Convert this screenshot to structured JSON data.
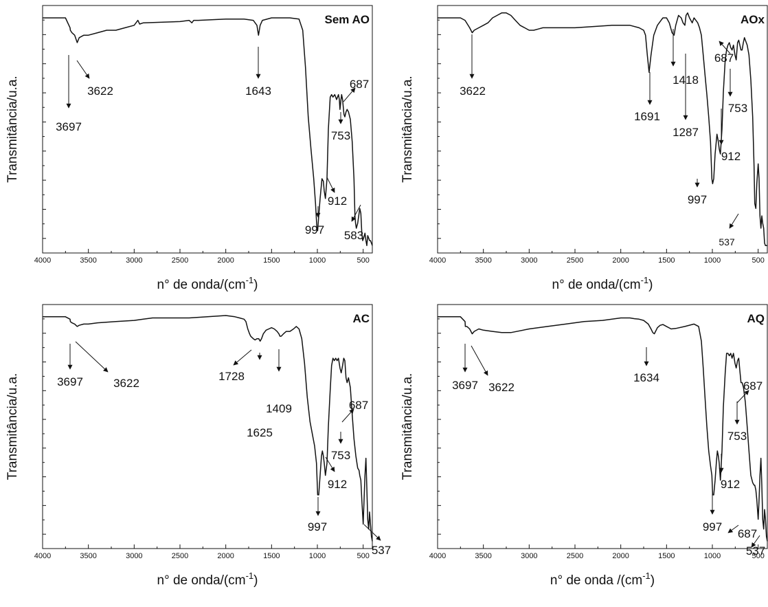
{
  "chart_data": [
    {
      "type": "line",
      "title": "Sem AO",
      "xlabel_main": "n° de onda/(cm",
      "xlabel_sup": "-1",
      "xlabel_end": ")",
      "ylabel": "Transmitância/u.a.",
      "xlim": [
        4000,
        400
      ],
      "ylim": [
        0,
        100
      ],
      "x_ticks": [
        4000,
        3500,
        3000,
        2500,
        2000,
        1500,
        1000,
        500
      ],
      "x_tick_labels": [
        "4000",
        "3500",
        "3000",
        "2500",
        "2000",
        "1500",
        "1000",
        "500"
      ],
      "series": [
        {
          "x": [
            4000,
            3750,
            3700,
            3697,
            3680,
            3650,
            3622,
            3600,
            3550,
            3500,
            3400,
            3300,
            3200,
            3100,
            3000,
            2960,
            2940,
            2900,
            2500,
            2400,
            2370,
            2350,
            2300,
            2000,
            1800,
            1700,
            1660,
            1643,
            1625,
            1600,
            1500,
            1300,
            1200,
            1160,
            1130,
            1100,
            1070,
            1040,
            1020,
            1005,
            997,
            985,
            970,
            950,
            935,
            925,
            912,
            895,
            880,
            860,
            845,
            830,
            810,
            790,
            770,
            760,
            753,
            745,
            735,
            725,
            710,
            700,
            687,
            675,
            660,
            640,
            620,
            600,
            590,
            583,
            575,
            560,
            545,
            537,
            525,
            515,
            505,
            495,
            480,
            470,
            460,
            450,
            440,
            430,
            420,
            410,
            400
          ],
          "y": [
            95,
            95,
            91,
            90,
            89,
            88,
            85,
            87,
            88,
            88,
            89,
            90,
            90,
            91,
            92,
            94,
            92.5,
            93,
            93.5,
            94,
            93,
            94,
            94,
            94.5,
            94.5,
            94,
            92,
            88,
            92,
            94,
            95,
            95,
            94.5,
            90,
            75,
            55,
            42,
            30,
            20,
            10,
            9,
            15,
            22,
            30,
            29,
            25,
            22,
            30,
            50,
            63,
            64,
            63,
            64,
            62,
            64,
            62,
            58,
            61,
            64,
            62,
            56,
            55,
            57,
            58,
            57,
            54,
            45,
            30,
            15,
            12,
            10,
            12,
            16,
            18,
            16,
            8,
            5,
            6,
            8,
            5,
            3,
            7,
            6,
            5,
            5,
            4,
            3
          ]
        }
      ],
      "annotations": [
        {
          "label": "3697",
          "wn": 3697
        },
        {
          "label": "3622",
          "wn": 3622
        },
        {
          "label": "1643",
          "wn": 1643
        },
        {
          "label": "687",
          "wn": 687
        },
        {
          "label": "753",
          "wn": 753
        },
        {
          "label": "912",
          "wn": 912
        },
        {
          "label": "997",
          "wn": 997
        },
        {
          "label": "583",
          "wn": 583
        }
      ]
    },
    {
      "type": "line",
      "title": "AOx",
      "xlabel_main": "n° de onda/(cm",
      "xlabel_sup": "-1",
      "xlabel_end": ")",
      "ylabel": "Transmitância/u.a.",
      "xlim": [
        4000,
        400
      ],
      "ylim": [
        0,
        100
      ],
      "x_ticks": [
        4000,
        3500,
        3000,
        2500,
        2000,
        1500,
        1000,
        500
      ],
      "x_tick_labels": [
        "4000",
        "3500",
        "3000",
        "2500",
        "2000",
        "1500",
        "1000",
        "500"
      ],
      "series": [
        {
          "x": [
            4000,
            3750,
            3700,
            3650,
            3622,
            3600,
            3550,
            3500,
            3450,
            3400,
            3350,
            3300,
            3250,
            3200,
            3150,
            3100,
            3050,
            3000,
            2950,
            2900,
            2850,
            2800,
            2700,
            2500,
            2300,
            2100,
            2000,
            1900,
            1800,
            1750,
            1730,
            1710,
            1691,
            1670,
            1640,
            1600,
            1560,
            1540,
            1500,
            1470,
            1440,
            1418,
            1400,
            1370,
            1340,
            1320,
            1300,
            1287,
            1270,
            1250,
            1220,
            1200,
            1180,
            1160,
            1140,
            1120,
            1100,
            1080,
            1060,
            1040,
            1020,
            1005,
            997,
            985,
            970,
            950,
            935,
            925,
            912,
            895,
            880,
            860,
            845,
            830,
            815,
            800,
            785,
            770,
            753,
            740,
            725,
            712,
            700,
            687,
            675,
            662,
            650,
            640,
            620,
            600,
            580,
            560,
            545,
            537,
            525,
            515,
            500,
            490,
            480,
            470,
            460,
            450,
            440,
            430,
            420,
            410,
            400
          ],
          "y": [
            95,
            95,
            94,
            91,
            89,
            90,
            91,
            92,
            93,
            95,
            96,
            97,
            97,
            96,
            94,
            92,
            91,
            90,
            90,
            90.5,
            91,
            91,
            91,
            91,
            91.5,
            92,
            92,
            92,
            91,
            90,
            88,
            80,
            73,
            80,
            88,
            92,
            94,
            95,
            95,
            93,
            89,
            88,
            92,
            96,
            95,
            93,
            92,
            96,
            97,
            95,
            93,
            95,
            94,
            93,
            91,
            88,
            80,
            72,
            64,
            55,
            45,
            30,
            28,
            30,
            40,
            48,
            45,
            42,
            40,
            50,
            65,
            78,
            82,
            84,
            85,
            83,
            82,
            84,
            80,
            78,
            85,
            86,
            84,
            82,
            82,
            85,
            87,
            86,
            84,
            80,
            70,
            55,
            35,
            20,
            18,
            28,
            36,
            30,
            15,
            10,
            15,
            12,
            10,
            4,
            3,
            3,
            3
          ]
        }
      ],
      "annotations": [
        {
          "label": "3622",
          "wn": 3622
        },
        {
          "label": "1691",
          "wn": 1691
        },
        {
          "label": "1418",
          "wn": 1418
        },
        {
          "label": "1287",
          "wn": 1287
        },
        {
          "label": "687",
          "wn": 687
        },
        {
          "label": "753",
          "wn": 753
        },
        {
          "label": "912",
          "wn": 912
        },
        {
          "label": "997",
          "wn": 997
        },
        {
          "label": "537",
          "wn": 537
        }
      ]
    },
    {
      "type": "line",
      "title": "AC",
      "xlabel_main": "n° de onda/(cm",
      "xlabel_sup": "-1",
      "xlabel_end": ")",
      "ylabel": "Transmitância/u.a.",
      "xlim": [
        4000,
        400
      ],
      "ylim": [
        0,
        100
      ],
      "x_ticks": [
        4000,
        3500,
        3000,
        2500,
        2000,
        1500,
        1000,
        500
      ],
      "x_tick_labels": [
        "4000",
        "3500",
        "3000",
        "2500",
        "2000",
        "1500",
        "1000",
        "500"
      ],
      "series": [
        {
          "x": [
            4000,
            3750,
            3700,
            3697,
            3680,
            3650,
            3622,
            3600,
            3550,
            3500,
            3400,
            3200,
            3000,
            2900,
            2800,
            2600,
            2400,
            2200,
            2000,
            1900,
            1850,
            1800,
            1780,
            1760,
            1740,
            1728,
            1700,
            1680,
            1660,
            1640,
            1625,
            1610,
            1590,
            1560,
            1530,
            1500,
            1470,
            1440,
            1420,
            1409,
            1395,
            1370,
            1340,
            1300,
            1260,
            1230,
            1200,
            1170,
            1140,
            1110,
            1080,
            1050,
            1030,
            1010,
            997,
            985,
            970,
            955,
            945,
            935,
            925,
            912,
            895,
            880,
            860,
            845,
            830,
            815,
            800,
            785,
            770,
            753,
            740,
            725,
            712,
            700,
            687,
            675,
            660,
            640,
            620,
            600,
            580,
            560,
            545,
            537,
            525,
            515,
            500,
            490,
            480,
            470,
            460,
            450,
            440,
            430,
            420,
            410,
            400
          ],
          "y": [
            95,
            95,
            94,
            93,
            92.5,
            92,
            91,
            91.5,
            92,
            92,
            92.5,
            93,
            93.5,
            94,
            94.5,
            94.5,
            94.5,
            95,
            95.5,
            95,
            94.5,
            94,
            93,
            90,
            88,
            87,
            86,
            85.5,
            86,
            86,
            85,
            86,
            88,
            89.5,
            90,
            90.5,
            90,
            89,
            88,
            87,
            87,
            88,
            89,
            89,
            90,
            91,
            90,
            86,
            76,
            62,
            52,
            46,
            42,
            35,
            22,
            22,
            30,
            38,
            40,
            38,
            35,
            30,
            35,
            50,
            65,
            75,
            78,
            77,
            78,
            77,
            78,
            74,
            72,
            75,
            78,
            77,
            70,
            68,
            70,
            66,
            55,
            45,
            38,
            33,
            32,
            30,
            28,
            20,
            10,
            20,
            30,
            37,
            25,
            12,
            8,
            15,
            10,
            5,
            3
          ]
        }
      ],
      "annotations": [
        {
          "label": "3697",
          "wn": 3697
        },
        {
          "label": "3622",
          "wn": 3622
        },
        {
          "label": "1728",
          "wn": 1728
        },
        {
          "label": "1625",
          "wn": 1625
        },
        {
          "label": "1409",
          "wn": 1409
        },
        {
          "label": "687",
          "wn": 687
        },
        {
          "label": "753",
          "wn": 753
        },
        {
          "label": "912",
          "wn": 912
        },
        {
          "label": "997",
          "wn": 997
        },
        {
          "label": "537",
          "wn": 537
        }
      ]
    },
    {
      "type": "line",
      "title": "AQ",
      "xlabel_main": "n° de onda /(cm",
      "xlabel_sup": "-1",
      "xlabel_end": ")",
      "ylabel": "Transmitância/u.a.",
      "xlim": [
        4000,
        400
      ],
      "ylim": [
        0,
        100
      ],
      "x_ticks": [
        4000,
        3500,
        3000,
        2500,
        2000,
        1500,
        1000,
        500
      ],
      "x_tick_labels": [
        "4000",
        "3500",
        "3000",
        "2500",
        "2000",
        "1500",
        "1000",
        "500"
      ],
      "series": [
        {
          "x": [
            4000,
            3750,
            3700,
            3697,
            3680,
            3650,
            3622,
            3600,
            3550,
            3500,
            3400,
            3300,
            3200,
            3000,
            2800,
            2600,
            2400,
            2200,
            2000,
            1900,
            1850,
            1800,
            1750,
            1700,
            1670,
            1650,
            1634,
            1620,
            1600,
            1570,
            1540,
            1500,
            1450,
            1400,
            1300,
            1200,
            1150,
            1120,
            1100,
            1080,
            1060,
            1040,
            1020,
            1005,
            997,
            985,
            970,
            955,
            945,
            935,
            925,
            912,
            895,
            880,
            860,
            845,
            830,
            815,
            800,
            785,
            770,
            753,
            740,
            725,
            712,
            700,
            687,
            675,
            660,
            640,
            620,
            600,
            580,
            560,
            545,
            537,
            525,
            515,
            500,
            490,
            480,
            470,
            460,
            450,
            440,
            430,
            420,
            410,
            400
          ],
          "y": [
            95,
            95,
            93,
            91,
            91,
            90,
            88,
            89,
            90,
            89.5,
            89,
            88.5,
            88.5,
            90,
            91,
            92,
            93,
            93.5,
            94.5,
            94.5,
            94.2,
            94,
            93.5,
            92,
            90,
            88.5,
            88,
            89,
            90.5,
            91.5,
            91.8,
            91,
            90,
            90.2,
            91,
            92,
            91,
            85,
            74,
            62,
            50,
            40,
            34,
            30,
            22,
            22,
            28,
            36,
            40,
            38,
            35,
            28,
            40,
            58,
            72,
            80,
            80,
            79,
            80,
            78,
            80,
            76,
            74,
            77,
            78,
            73,
            68,
            68,
            66,
            60,
            50,
            40,
            30,
            27,
            26,
            26,
            24,
            20,
            12,
            20,
            30,
            37,
            26,
            12,
            8,
            16,
            12,
            5,
            3
          ]
        }
      ],
      "annotations": [
        {
          "label": "3697",
          "wn": 3697
        },
        {
          "label": "3622",
          "wn": 3622
        },
        {
          "label": "1634",
          "wn": 1634
        },
        {
          "label": "687",
          "wn": 687
        },
        {
          "label": "753",
          "wn": 753
        },
        {
          "label": "912",
          "wn": 912
        },
        {
          "label": "997",
          "wn": 997
        },
        {
          "label": "687",
          "wn": 687
        },
        {
          "label": "537",
          "wn": 537
        }
      ]
    }
  ]
}
